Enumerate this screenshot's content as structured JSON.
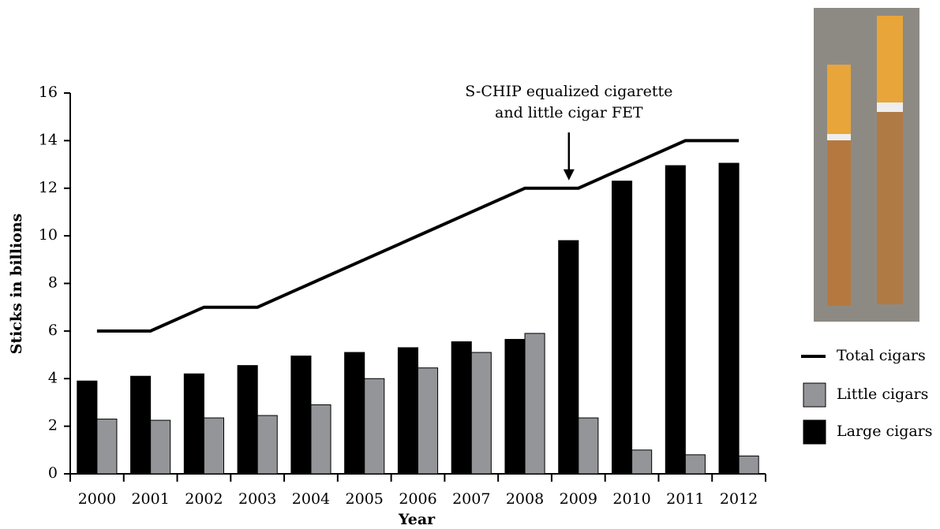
{
  "chart_data": {
    "type": "bar",
    "x_label": "Year",
    "y_label": "Sticks in billions",
    "categories": [
      "2000",
      "2001",
      "2002",
      "2003",
      "2004",
      "2005",
      "2006",
      "2007",
      "2008",
      "2009",
      "2010",
      "2011",
      "2012"
    ],
    "series": [
      {
        "name": "Total cigars",
        "type": "line",
        "color": "#000000",
        "values": [
          6,
          6,
          7,
          7,
          8,
          9,
          10,
          11,
          12,
          12,
          13,
          14,
          14
        ]
      },
      {
        "name": "Little cigars",
        "type": "bar",
        "color": "#939598",
        "values": [
          2.3,
          2.25,
          2.35,
          2.45,
          2.9,
          4.0,
          4.45,
          5.1,
          5.9,
          2.35,
          1.0,
          0.8,
          0.75
        ]
      },
      {
        "name": "Large cigars",
        "type": "bar",
        "color": "#000000",
        "values": [
          3.9,
          4.1,
          4.2,
          4.55,
          4.95,
          5.1,
          5.3,
          5.55,
          5.65,
          9.8,
          12.3,
          12.95,
          13.05
        ]
      }
    ],
    "annotation": {
      "text": [
        "S-CHIP equalized cigarette",
        "and little cigar FET"
      ],
      "category": "2009"
    },
    "ylim": [
      0,
      16
    ],
    "yticks": [
      0,
      2,
      4,
      6,
      8,
      10,
      12,
      14,
      16
    ],
    "grid": false
  }
}
